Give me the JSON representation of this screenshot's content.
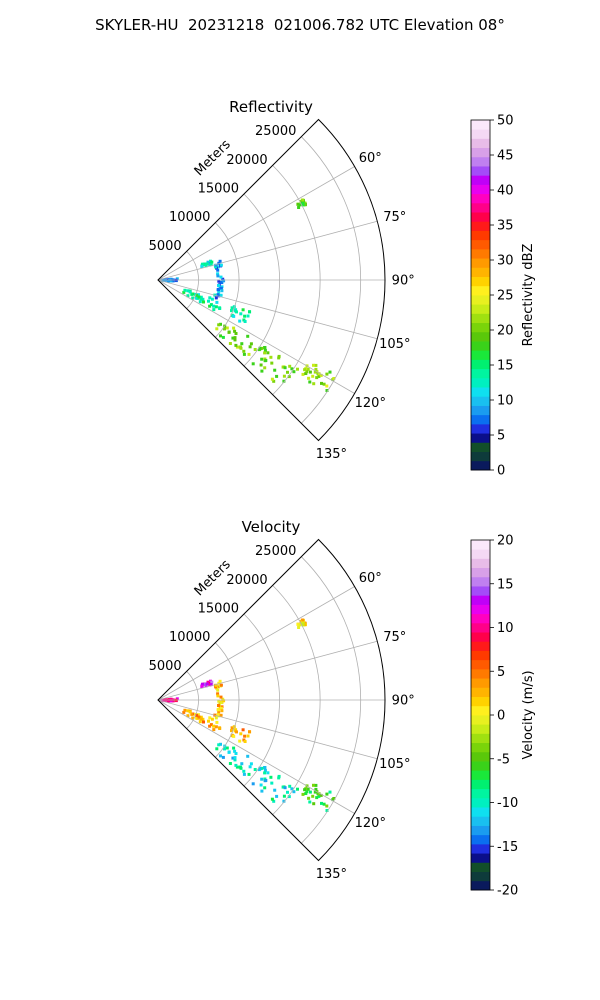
{
  "figure": {
    "title": "SKYLER-HU  20231218  021006.782 UTC Elevation 08°"
  },
  "chart_data": [
    {
      "type": "polar-sector",
      "title": "Reflectivity",
      "range_label": "Meters",
      "range_ticks": [
        5000,
        10000,
        15000,
        20000,
        25000
      ],
      "rmax": 28000,
      "angle_range_deg": [
        45,
        135
      ],
      "angle_ticks": [
        "60°",
        "75°",
        "90°",
        "105°",
        "120°",
        "135°"
      ],
      "grid": true,
      "colorbar": {
        "label": "Reflectivity dBZ",
        "min": 0,
        "max": 50,
        "ticks": [
          "0",
          "5",
          "10",
          "15",
          "20",
          "25",
          "30",
          "35",
          "40",
          "45",
          "50"
        ],
        "colors": [
          "#0a1a5c",
          "#0e3b3b",
          "#124f2a",
          "#0b0f8a",
          "#1f2fe0",
          "#0a6ff0",
          "#1a9cf0",
          "#19c0f0",
          "#0fe0f0",
          "#00f0c0",
          "#00f5a0",
          "#00f070",
          "#1ae83a",
          "#3ad21a",
          "#5ac80a",
          "#7ad40a",
          "#a0e010",
          "#c8ec18",
          "#e8f020",
          "#fff01e",
          "#ffd200",
          "#ffb400",
          "#ff9a00",
          "#ff7a00",
          "#ff5a00",
          "#ff3a00",
          "#ff1a1a",
          "#ff004a",
          "#ff0088",
          "#ff00c0",
          "#e800f0",
          "#c000f8",
          "#a44cf8",
          "#c080f0",
          "#d8a0e8",
          "#e8bce8",
          "#f4d8f4",
          "#fbe8fb"
        ]
      },
      "echo_regions": [
        {
          "name": "near-range cluster",
          "az_deg": [
            86,
            96
          ],
          "range_m": [
            300,
            2600
          ],
          "value": 8
        },
        {
          "name": "blob near 72°",
          "az_deg": [
            70,
            74
          ],
          "range_m": [
            5600,
            7000
          ],
          "value": 12
        },
        {
          "name": "ring arc",
          "az_deg": [
            72,
            108
          ],
          "range_m": [
            7200,
            8100
          ],
          "value": 9
        },
        {
          "name": "band 110-120",
          "az_deg": [
            109,
            118
          ],
          "range_m": [
            3500,
            12000
          ],
          "value": 14
        },
        {
          "name": "main band",
          "az_deg": [
            122,
            132
          ],
          "range_m": [
            9000,
            20500
          ],
          "value": 20
        },
        {
          "name": "far cell",
          "az_deg": [
            118,
            124
          ],
          "range_m": [
            21000,
            25000
          ],
          "value": 21
        },
        {
          "name": "isolated echo 62°",
          "az_deg": [
            61,
            63
          ],
          "range_m": [
            19500,
            20500
          ],
          "value": 19
        }
      ]
    },
    {
      "type": "polar-sector",
      "title": "Velocity",
      "range_label": "Meters",
      "range_ticks": [
        5000,
        10000,
        15000,
        20000,
        25000
      ],
      "rmax": 28000,
      "angle_range_deg": [
        45,
        135
      ],
      "angle_ticks": [
        "60°",
        "75°",
        "90°",
        "105°",
        "120°",
        "135°"
      ],
      "grid": true,
      "colorbar": {
        "label": "Velocity (m/s)",
        "min": -20,
        "max": 20,
        "ticks": [
          "-20",
          "-15",
          "-10",
          "-5",
          "0",
          "5",
          "10",
          "15",
          "20"
        ],
        "colors": [
          "#0a1a5c",
          "#0e3b3b",
          "#124f2a",
          "#0b0f8a",
          "#1f2fe0",
          "#0a6ff0",
          "#1a9cf0",
          "#19c0f0",
          "#0fe0f0",
          "#00f0c0",
          "#00f5a0",
          "#00f070",
          "#1ae83a",
          "#3ad21a",
          "#5ac80a",
          "#7ad40a",
          "#a0e010",
          "#c8ec18",
          "#e8f020",
          "#fff01e",
          "#ffd200",
          "#ffb400",
          "#ff9a00",
          "#ff7a00",
          "#ff5a00",
          "#ff3a00",
          "#ff1a1a",
          "#ff004a",
          "#ff0088",
          "#ff00c0",
          "#e800f0",
          "#c000f8",
          "#a44cf8",
          "#c080f0",
          "#d8a0e8",
          "#e8bce8",
          "#f4d8f4",
          "#fbe8fb"
        ]
      },
      "echo_regions": [
        {
          "name": "near-range cluster",
          "az_deg": [
            86,
            96
          ],
          "range_m": [
            300,
            2600
          ],
          "value": 10
        },
        {
          "name": "blob near 72°",
          "az_deg": [
            70,
            74
          ],
          "range_m": [
            5600,
            7000
          ],
          "value": 12
        },
        {
          "name": "ring arc",
          "az_deg": [
            72,
            108
          ],
          "range_m": [
            7200,
            8100
          ],
          "value": 2
        },
        {
          "name": "band 110-120",
          "az_deg": [
            109,
            118
          ],
          "range_m": [
            3500,
            12000
          ],
          "value": 3
        },
        {
          "name": "main band",
          "az_deg": [
            122,
            132
          ],
          "range_m": [
            9000,
            20500
          ],
          "value": -10
        },
        {
          "name": "far cell",
          "az_deg": [
            118,
            124
          ],
          "range_m": [
            21000,
            25000
          ],
          "value": -6
        },
        {
          "name": "isolated echo 62°",
          "az_deg": [
            61,
            63
          ],
          "range_m": [
            19500,
            20500
          ],
          "value": 1
        }
      ]
    }
  ]
}
